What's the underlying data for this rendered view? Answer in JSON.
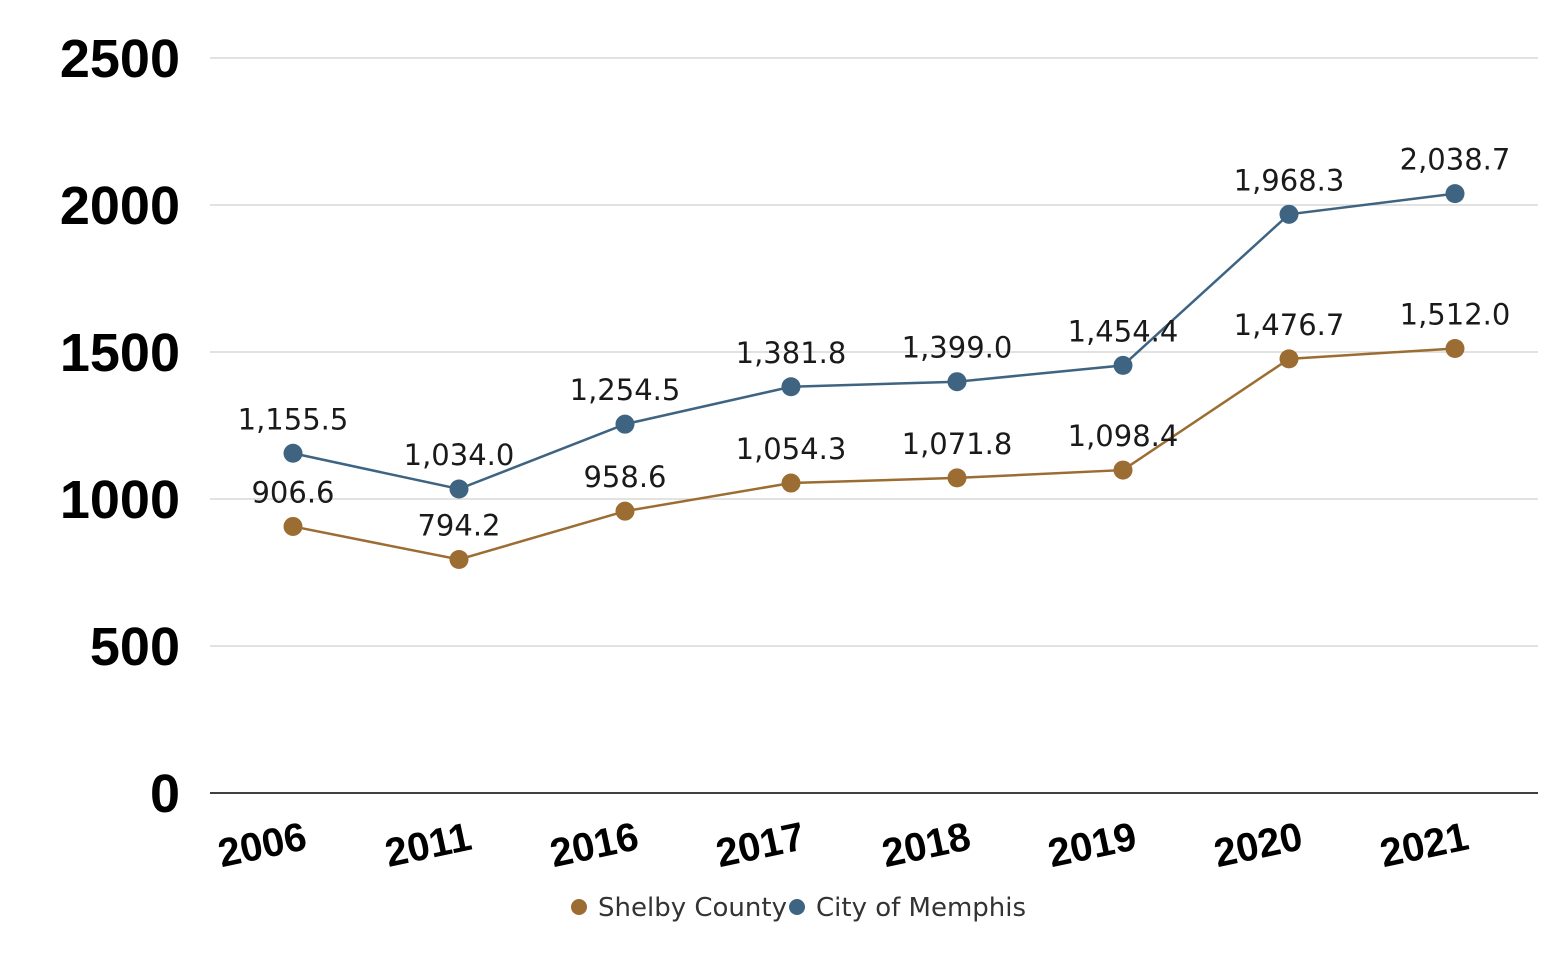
{
  "chart_data": {
    "type": "line",
    "categories": [
      "2006",
      "2011",
      "2016",
      "2017",
      "2018",
      "2019",
      "2020",
      "2021"
    ],
    "series": [
      {
        "name": "Shelby County",
        "color": "#9c6d33",
        "values": [
          906.6,
          794.2,
          958.6,
          1054.3,
          1071.8,
          1098.4,
          1476.7,
          1512.0
        ],
        "labels": [
          "906.6",
          "794.2",
          "958.6",
          "1,054.3",
          "1,071.8",
          "1,098.4",
          "1,476.7",
          "1,512.0"
        ]
      },
      {
        "name": "City of Memphis",
        "color": "#3e6482",
        "values": [
          1155.5,
          1034.0,
          1254.5,
          1381.8,
          1399.0,
          1454.4,
          1968.3,
          2038.7
        ],
        "labels": [
          "1,155.5",
          "1,034.0",
          "1,254.5",
          "1,381.8",
          "1,399.0",
          "1,454.4",
          "1,968.3",
          "2,038.7"
        ]
      }
    ],
    "ylim": [
      0,
      2500
    ],
    "yticks": [
      "0",
      "500",
      "1000",
      "1500",
      "2000",
      "2500"
    ],
    "grid": true,
    "legend_position": "bottom"
  }
}
